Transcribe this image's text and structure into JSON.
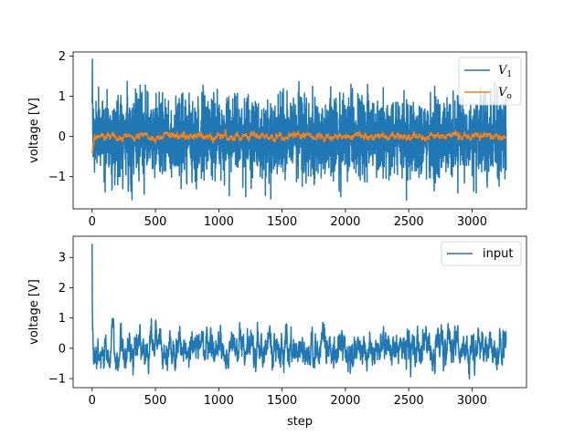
{
  "chart_data": [
    {
      "type": "line",
      "ylabel": "voltage [V]",
      "xlabel": "",
      "xlim": [
        -150,
        3430
      ],
      "ylim": [
        -1.8,
        2.1
      ],
      "xticks": [
        "0",
        "500",
        "1000",
        "1500",
        "2000",
        "2500",
        "3000"
      ],
      "yticks": [
        "2",
        "1",
        "0",
        "−1"
      ],
      "ytick_values": [
        2,
        1,
        0,
        -1
      ],
      "legend_position": "top-right",
      "legend": [
        {
          "name": "V",
          "subscript": "1",
          "color": "#1f77b4"
        },
        {
          "name": "V",
          "subscript": "o",
          "color": "#ff7f0e"
        }
      ],
      "series": [
        {
          "name": "V1",
          "color": "#1f77b4",
          "n": 3270,
          "start": 0,
          "std": 0.5,
          "initial_peak": 1.92,
          "min": -1.6,
          "max": 1.4
        },
        {
          "name": "Vo",
          "color": "#ff7f0e",
          "n": 3270,
          "start": 0,
          "std": 0.04,
          "initial_value": -0.4
        }
      ]
    },
    {
      "type": "line",
      "ylabel": "voltage [V]",
      "xlabel": "step",
      "xlim": [
        -150,
        3430
      ],
      "ylim": [
        -1.3,
        3.7
      ],
      "xticks": [
        "0",
        "500",
        "1000",
        "1500",
        "2000",
        "2500",
        "3000"
      ],
      "yticks": [
        "3",
        "2",
        "1",
        "0",
        "−1"
      ],
      "ytick_values": [
        3,
        2,
        1,
        0,
        -1
      ],
      "legend_position": "top-right",
      "legend": [
        {
          "name": "input",
          "color": "#1f77b4"
        }
      ],
      "series": [
        {
          "name": "input",
          "color": "#1f77b4",
          "n": 3270,
          "start": 0,
          "initial_peak": 3.45,
          "std": 0.3,
          "min": -1.1,
          "max": 1.0
        }
      ]
    }
  ]
}
